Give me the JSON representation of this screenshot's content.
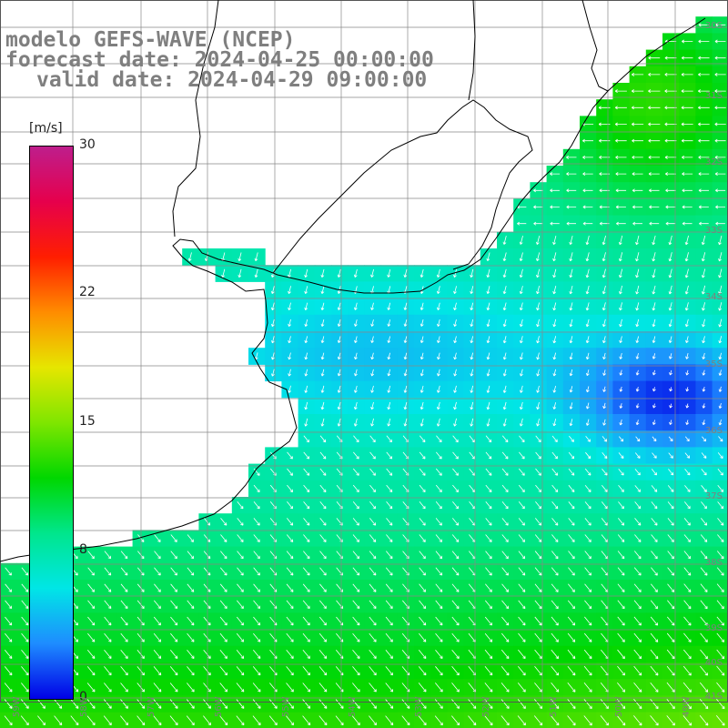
{
  "title": {
    "line1": "modelo GEFS-WAVE (NCEP)",
    "line2": "forecast date: 2024-04-25 00:00:00",
    "line3": "valid date: 2024-04-29 09:00:00"
  },
  "colorbar": {
    "unit": "[m/s]",
    "min": 0,
    "max": 30,
    "ticks": [
      {
        "label": "30",
        "value": 30
      },
      {
        "label": "22",
        "value": 22
      },
      {
        "label": "15",
        "value": 15
      },
      {
        "label": "8",
        "value": 8
      },
      {
        "label": "0",
        "value": 0
      }
    ],
    "colors": [
      "#0000e6",
      "#1e8cff",
      "#00e6e6",
      "#00e68c",
      "#00d700",
      "#7fe600",
      "#e6e600",
      "#ff8c00",
      "#ff1e00",
      "#e6004c",
      "#be1e8c"
    ]
  },
  "map": {
    "variable": "wind speed and direction",
    "grid_lines": "on",
    "lat_labels": [
      "30S",
      "31S",
      "32S",
      "33S",
      "34S",
      "35S",
      "36S",
      "37S",
      "38S",
      "39S",
      "40S",
      "41S"
    ],
    "lon_labels": [
      "59W",
      "58W",
      "57W",
      "56W",
      "55W",
      "54W",
      "53W",
      "52W",
      "51W",
      "50W",
      "49W"
    ],
    "land_color": "#ffffff",
    "coast_color": "#000000",
    "arrow_color": "#ffffff"
  }
}
